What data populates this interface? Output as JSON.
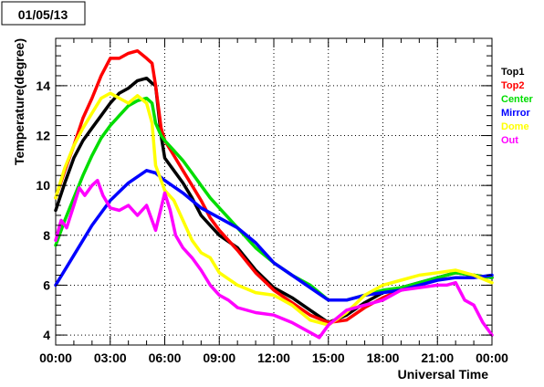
{
  "chart_data": {
    "type": "line",
    "title": "01/05/13",
    "xlabel": "Universal Time",
    "ylabel": "Temperature(degree)",
    "xlim": [
      0,
      24
    ],
    "ylim": [
      3.6,
      15.9
    ],
    "x_ticks": [
      0,
      3,
      6,
      9,
      12,
      15,
      18,
      21,
      24
    ],
    "x_tick_labels": [
      "00:00",
      "03:00",
      "06:00",
      "09:00",
      "12:00",
      "15:00",
      "18:00",
      "21:00",
      "00:00"
    ],
    "y_ticks": [
      4,
      6,
      8,
      10,
      12,
      14
    ],
    "y_tick_labels": [
      "4",
      "6",
      "8",
      "10",
      "12",
      "14"
    ],
    "grid": true,
    "legend_position": "right",
    "series": [
      {
        "name": "Top1",
        "color": "#000000",
        "x": [
          0,
          0.5,
          1,
          1.5,
          2,
          2.5,
          3,
          3.5,
          4,
          4.5,
          5,
          5.3,
          5.5,
          5.8,
          6,
          6.5,
          7,
          7.5,
          8,
          8.5,
          9,
          10,
          11,
          12,
          13,
          14,
          15,
          16,
          17,
          18,
          19,
          20,
          21,
          22,
          23,
          24
        ],
        "y": [
          9.0,
          10.1,
          11.1,
          11.8,
          12.3,
          12.8,
          13.3,
          13.7,
          13.9,
          14.2,
          14.3,
          14.1,
          14.0,
          12.0,
          11.1,
          10.6,
          10.1,
          9.5,
          8.8,
          8.4,
          8.0,
          7.5,
          6.6,
          5.9,
          5.5,
          5.0,
          4.5,
          4.8,
          5.3,
          5.7,
          5.9,
          6.1,
          6.3,
          6.5,
          6.4,
          6.3
        ]
      },
      {
        "name": "Top2",
        "color": "#ff0000",
        "x": [
          0,
          0.5,
          1,
          1.5,
          2,
          2.5,
          3,
          3.5,
          4,
          4.5,
          5,
          5.3,
          5.5,
          5.8,
          6,
          6.5,
          7,
          7.5,
          8,
          8.5,
          9,
          10,
          11,
          12,
          13,
          14,
          15,
          16,
          17,
          18,
          19,
          20,
          21,
          22,
          23,
          24
        ],
        "y": [
          9.5,
          10.6,
          11.6,
          12.7,
          13.5,
          14.4,
          15.1,
          15.1,
          15.3,
          15.4,
          15.1,
          14.9,
          14.0,
          12.3,
          11.8,
          11.2,
          10.6,
          10.0,
          9.4,
          8.7,
          8.2,
          7.4,
          6.5,
          5.8,
          5.3,
          4.8,
          4.5,
          4.6,
          5.1,
          5.5,
          5.8,
          6.0,
          6.3,
          6.5,
          6.4,
          6.3
        ]
      },
      {
        "name": "Center",
        "color": "#00dd00",
        "x": [
          0,
          0.5,
          1,
          1.5,
          2,
          2.5,
          3,
          3.5,
          4,
          4.5,
          5,
          5.3,
          5.5,
          5.8,
          6,
          6.5,
          7,
          7.5,
          8,
          8.5,
          9,
          10,
          11,
          12,
          13,
          14,
          15,
          16,
          17,
          18,
          19,
          20,
          21,
          22,
          23,
          24
        ],
        "y": [
          7.6,
          8.6,
          9.5,
          10.4,
          11.2,
          11.9,
          12.4,
          12.8,
          13.2,
          13.4,
          13.5,
          13.3,
          12.5,
          12.0,
          11.8,
          11.4,
          11.0,
          10.5,
          10.0,
          9.5,
          9.1,
          8.3,
          7.5,
          6.9,
          6.4,
          6.0,
          5.4,
          5.4,
          5.6,
          5.8,
          5.9,
          6.1,
          6.3,
          6.5,
          6.4,
          6.3
        ]
      },
      {
        "name": "Mirror",
        "color": "#0000ff",
        "x": [
          0,
          1,
          2,
          3,
          4,
          5,
          5.5,
          6,
          7,
          8,
          9,
          10,
          11,
          12,
          13,
          14,
          15,
          16,
          17,
          18,
          19,
          20,
          21,
          22,
          23,
          24
        ],
        "y": [
          6.0,
          7.2,
          8.4,
          9.4,
          10.1,
          10.6,
          10.5,
          10.2,
          9.7,
          9.1,
          8.7,
          8.3,
          7.7,
          6.9,
          6.4,
          5.9,
          5.4,
          5.4,
          5.6,
          5.7,
          5.8,
          6.0,
          6.2,
          6.3,
          6.3,
          6.4
        ]
      },
      {
        "name": "Dome",
        "color": "#ffff00",
        "x": [
          0,
          0.5,
          1,
          1.5,
          2,
          2.5,
          3,
          3.5,
          4,
          4.5,
          5,
          5.3,
          5.5,
          5.8,
          6,
          6.5,
          7,
          7.5,
          8,
          8.5,
          9,
          10,
          11,
          12,
          13,
          14,
          15,
          16,
          17,
          18,
          19,
          20,
          21,
          22,
          23,
          24
        ],
        "y": [
          9.5,
          10.7,
          11.6,
          12.3,
          12.9,
          13.5,
          13.7,
          13.5,
          13.3,
          13.6,
          13.3,
          12.5,
          10.8,
          10.2,
          9.8,
          9.4,
          8.6,
          7.8,
          7.3,
          7.1,
          6.5,
          6.0,
          5.7,
          5.6,
          5.2,
          4.6,
          4.4,
          4.9,
          5.6,
          6.0,
          6.2,
          6.4,
          6.5,
          6.6,
          6.4,
          6.1
        ]
      },
      {
        "name": "Out",
        "color": "#ff00ff",
        "x": [
          0,
          0.3,
          0.6,
          1,
          1.3,
          1.6,
          2,
          2.3,
          2.6,
          3,
          3.5,
          4,
          4.5,
          5,
          5.5,
          6,
          6.3,
          6.6,
          7,
          7.5,
          8,
          8.5,
          9,
          9.5,
          10,
          11,
          12,
          13,
          14,
          14.5,
          15,
          16,
          17,
          18,
          19,
          20,
          21,
          21.5,
          22,
          22.5,
          23,
          23.5,
          24
        ],
        "y": [
          7.8,
          8.6,
          8.3,
          9.2,
          9.9,
          9.6,
          10.0,
          10.2,
          9.6,
          9.1,
          9.0,
          9.2,
          8.8,
          9.2,
          8.2,
          9.7,
          9.0,
          8.0,
          7.5,
          7.1,
          6.6,
          6.0,
          5.6,
          5.4,
          5.1,
          4.9,
          4.8,
          4.5,
          4.1,
          3.9,
          4.4,
          5.0,
          5.2,
          5.4,
          5.8,
          5.9,
          6.0,
          6.0,
          6.1,
          5.4,
          5.2,
          4.5,
          4.0
        ]
      }
    ]
  }
}
